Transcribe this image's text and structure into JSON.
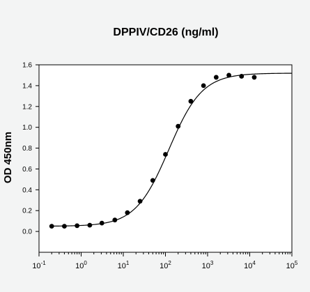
{
  "chart_data": {
    "type": "scatter",
    "title": "DPPIV/CD26 (ng/ml)",
    "xlabel": "",
    "ylabel": "OD 450nm",
    "x_scale": "log",
    "xlim": [
      0.1,
      100000
    ],
    "ylim": [
      -0.2,
      1.6
    ],
    "x_ticks": [
      {
        "value": 0.1,
        "base": "10",
        "exp": "-1"
      },
      {
        "value": 1,
        "base": "10",
        "exp": "0"
      },
      {
        "value": 10,
        "base": "10",
        "exp": "1"
      },
      {
        "value": 100,
        "base": "10",
        "exp": "2"
      },
      {
        "value": 1000,
        "base": "10",
        "exp": "3"
      },
      {
        "value": 10000,
        "base": "10",
        "exp": "4"
      },
      {
        "value": 100000,
        "base": "10",
        "exp": "5"
      }
    ],
    "y_ticks": [
      "0.0",
      "0.2",
      "0.4",
      "0.6",
      "0.8",
      "1.0",
      "1.2",
      "1.4",
      "1.6"
    ],
    "grid": false,
    "series": [
      {
        "type": "scatter",
        "x": [
          0.2,
          0.4,
          0.8,
          1.6,
          3.1,
          6.3,
          12.5,
          25,
          50,
          100,
          200,
          400,
          800,
          1600,
          3200,
          6400,
          12800
        ],
        "y": [
          0.05,
          0.05,
          0.055,
          0.06,
          0.08,
          0.11,
          0.18,
          0.29,
          0.49,
          0.74,
          1.01,
          1.25,
          1.4,
          1.48,
          1.5,
          1.49,
          1.48
        ]
      },
      {
        "type": "line",
        "fit": {
          "bottom": 0.05,
          "top": 1.52,
          "ec50": 120,
          "hill": 1.1
        }
      }
    ],
    "colors": {
      "background": "#f3f4f4",
      "plot_area": "#ffffff",
      "marker": "#000000",
      "line": "#000000"
    }
  }
}
